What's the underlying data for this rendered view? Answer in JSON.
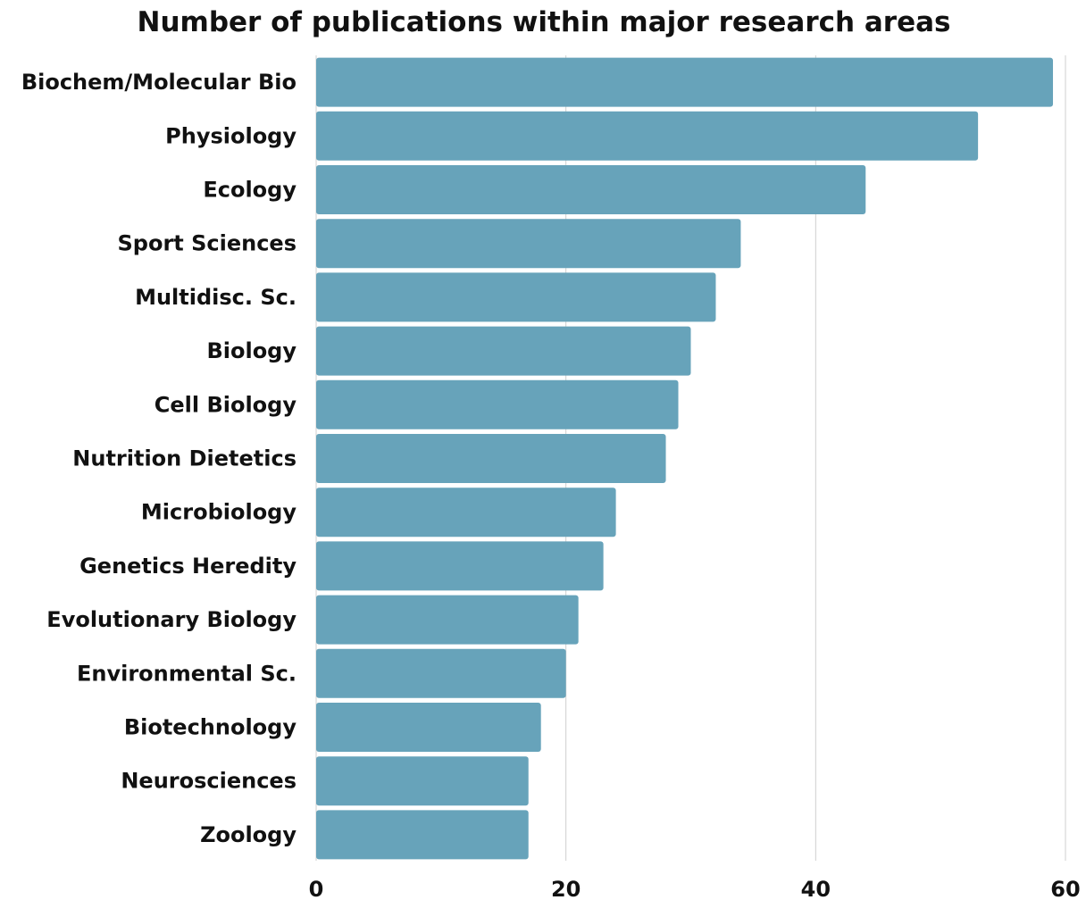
{
  "chart_data": {
    "type": "bar",
    "orientation": "horizontal",
    "title": "Number of publications within major research areas",
    "xlabel": "",
    "ylabel": "",
    "categories": [
      "Biochem/Molecular Bio",
      "Physiology",
      "Ecology",
      "Sport Sciences",
      "Multidisc. Sc.",
      "Biology",
      "Cell Biology",
      "Nutrition Dietetics",
      "Microbiology",
      "Genetics Heredity",
      "Evolutionary Biology",
      "Environmental Sc.",
      "Biotechnology",
      "Neurosciences",
      "Zoology"
    ],
    "values": [
      59,
      53,
      44,
      34,
      32,
      30,
      29,
      28,
      24,
      23,
      21,
      20,
      18,
      17,
      17
    ],
    "xlim": [
      0,
      60
    ],
    "xticks": [
      "0",
      "20",
      "40",
      "60"
    ],
    "grid": true,
    "bar_color": "#67a3ba",
    "legend": "none"
  }
}
